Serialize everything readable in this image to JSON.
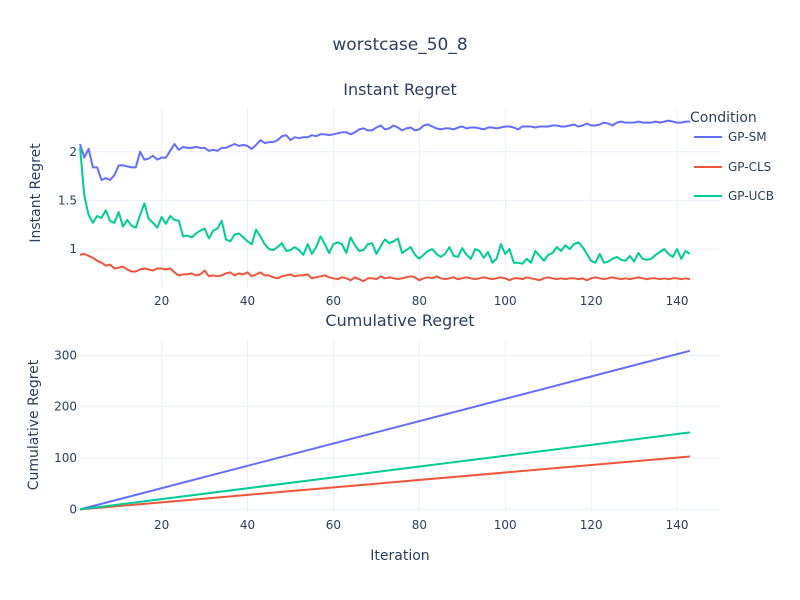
{
  "chart_data": {
    "title": "worstcase_50_8",
    "legend": {
      "title": "Condition",
      "placement": "top-right"
    },
    "colors": {
      "GP-SM": "#636efa",
      "GP-CLS": "#EF553B",
      "GP-UCB": "#00cc96"
    },
    "panels": [
      {
        "type": "line",
        "title": "Instant Regret",
        "xlabel": "",
        "ylabel": "Instant Regret",
        "xlim": [
          1,
          150
        ],
        "ylim": [
          0.6,
          2.45
        ],
        "xticks": [
          20,
          40,
          60,
          80,
          100,
          120,
          140
        ],
        "yticks": [
          1,
          1.5,
          2
        ],
        "grid": true,
        "x_range": [
          1,
          143
        ],
        "series": [
          {
            "name": "GP-SM",
            "values": [
              2.08,
              1.94,
              2.03,
              1.84,
              1.84,
              1.71,
              1.73,
              1.71,
              1.76,
              1.86,
              1.86,
              1.85,
              1.84,
              1.84,
              2.0,
              1.92,
              1.93,
              1.96,
              1.92,
              1.94,
              1.94,
              2.01,
              2.08,
              2.02,
              2.05,
              2.04,
              2.04,
              2.05,
              2.04,
              2.04,
              2.01,
              2.02,
              2.01,
              2.04,
              2.04,
              2.06,
              2.08,
              2.06,
              2.07,
              2.06,
              2.03,
              2.07,
              2.12,
              2.09,
              2.1,
              2.1,
              2.12,
              2.16,
              2.17,
              2.12,
              2.15,
              2.14,
              2.15,
              2.15,
              2.17,
              2.16,
              2.18,
              2.18,
              2.17,
              2.18,
              2.19,
              2.2,
              2.2,
              2.18,
              2.2,
              2.23,
              2.24,
              2.22,
              2.22,
              2.25,
              2.27,
              2.23,
              2.24,
              2.27,
              2.25,
              2.22,
              2.24,
              2.25,
              2.22,
              2.23,
              2.27,
              2.28,
              2.26,
              2.24,
              2.23,
              2.24,
              2.24,
              2.23,
              2.25,
              2.26,
              2.24,
              2.25,
              2.25,
              2.24,
              2.23,
              2.25,
              2.25,
              2.24,
              2.25,
              2.26,
              2.26,
              2.25,
              2.23,
              2.26,
              2.26,
              2.26,
              2.25,
              2.26,
              2.26,
              2.26,
              2.27,
              2.27,
              2.26,
              2.26,
              2.27,
              2.28,
              2.26,
              2.27,
              2.29,
              2.27,
              2.27,
              2.28,
              2.3,
              2.29,
              2.27,
              2.3,
              2.31,
              2.3,
              2.3,
              2.3,
              2.31,
              2.3,
              2.3,
              2.3,
              2.31,
              2.3,
              2.31,
              2.32,
              2.31,
              2.3,
              2.3,
              2.31,
              2.31
            ]
          },
          {
            "name": "GP-CLS",
            "values": [
              0.94,
              0.95,
              0.93,
              0.91,
              0.88,
              0.86,
              0.83,
              0.84,
              0.8,
              0.81,
              0.82,
              0.79,
              0.77,
              0.77,
              0.79,
              0.8,
              0.79,
              0.78,
              0.8,
              0.8,
              0.79,
              0.8,
              0.76,
              0.73,
              0.74,
              0.74,
              0.75,
              0.73,
              0.74,
              0.78,
              0.72,
              0.73,
              0.72,
              0.73,
              0.75,
              0.76,
              0.73,
              0.75,
              0.74,
              0.76,
              0.72,
              0.74,
              0.76,
              0.73,
              0.73,
              0.71,
              0.7,
              0.72,
              0.73,
              0.74,
              0.72,
              0.73,
              0.73,
              0.74,
              0.7,
              0.71,
              0.72,
              0.73,
              0.71,
              0.7,
              0.69,
              0.71,
              0.7,
              0.68,
              0.71,
              0.69,
              0.67,
              0.7,
              0.7,
              0.69,
              0.72,
              0.7,
              0.71,
              0.7,
              0.69,
              0.7,
              0.71,
              0.72,
              0.71,
              0.68,
              0.7,
              0.71,
              0.7,
              0.72,
              0.7,
              0.69,
              0.7,
              0.71,
              0.69,
              0.7,
              0.71,
              0.7,
              0.69,
              0.7,
              0.71,
              0.7,
              0.69,
              0.7,
              0.71,
              0.7,
              0.68,
              0.7,
              0.7,
              0.69,
              0.71,
              0.7,
              0.69,
              0.68,
              0.7,
              0.71,
              0.7,
              0.69,
              0.7,
              0.69,
              0.7,
              0.7,
              0.69,
              0.7,
              0.68,
              0.7,
              0.71,
              0.7,
              0.69,
              0.7,
              0.71,
              0.7,
              0.69,
              0.7,
              0.69,
              0.7,
              0.71,
              0.7,
              0.69,
              0.7,
              0.7,
              0.69,
              0.7,
              0.69,
              0.7,
              0.7,
              0.69,
              0.7,
              0.69
            ]
          },
          {
            "name": "GP-UCB",
            "values": [
              2.05,
              1.55,
              1.35,
              1.27,
              1.34,
              1.32,
              1.4,
              1.29,
              1.27,
              1.38,
              1.23,
              1.3,
              1.24,
              1.22,
              1.35,
              1.47,
              1.31,
              1.27,
              1.22,
              1.33,
              1.26,
              1.34,
              1.3,
              1.29,
              1.13,
              1.14,
              1.12,
              1.16,
              1.19,
              1.21,
              1.11,
              1.19,
              1.21,
              1.29,
              1.1,
              1.08,
              1.15,
              1.16,
              1.12,
              1.08,
              1.05,
              1.2,
              1.13,
              1.05,
              1.0,
              0.99,
              1.02,
              1.06,
              0.98,
              0.99,
              1.02,
              0.99,
              0.94,
              1.05,
              0.95,
              1.02,
              1.13,
              1.05,
              0.96,
              1.05,
              1.07,
              1.05,
              0.96,
              1.12,
              1.04,
              0.98,
              0.99,
              1.05,
              1.06,
              0.95,
              1.03,
              1.1,
              1.06,
              1.08,
              1.11,
              0.96,
              0.99,
              1.02,
              0.94,
              0.9,
              0.94,
              0.98,
              1.0,
              0.95,
              0.92,
              0.95,
              1.02,
              0.93,
              0.92,
              1.01,
              0.94,
              0.9,
              1.0,
              0.98,
              0.91,
              0.97,
              0.86,
              0.9,
              1.05,
              0.95,
              1.0,
              0.86,
              0.86,
              0.85,
              0.9,
              0.86,
              0.98,
              0.93,
              0.88,
              0.94,
              0.96,
              1.02,
              0.98,
              1.04,
              1.0,
              1.05,
              1.07,
              1.02,
              0.95,
              0.88,
              0.86,
              0.95,
              0.86,
              0.87,
              0.9,
              0.92,
              0.89,
              0.88,
              0.93,
              0.87,
              0.96,
              0.9,
              0.89,
              0.9,
              0.94,
              0.97,
              1.0,
              0.95,
              0.92,
              1.0,
              0.9,
              0.98,
              0.95
            ]
          }
        ]
      },
      {
        "type": "line",
        "title": "Cumulative Regret",
        "xlabel": "Iteration",
        "ylabel": "Cumulative Regret",
        "xlim": [
          1,
          150
        ],
        "ylim": [
          -5,
          330
        ],
        "xticks": [
          20,
          40,
          60,
          80,
          100,
          120,
          140
        ],
        "yticks": [
          0,
          100,
          200,
          300
        ],
        "grid": true,
        "x_range": [
          1,
          143
        ],
        "series": [
          {
            "name": "GP-SM",
            "values": [
              0,
              309
            ]
          },
          {
            "name": "GP-CLS",
            "values": [
              0,
              103
            ]
          },
          {
            "name": "GP-UCB",
            "values": [
              0,
              150
            ]
          }
        ]
      }
    ]
  }
}
